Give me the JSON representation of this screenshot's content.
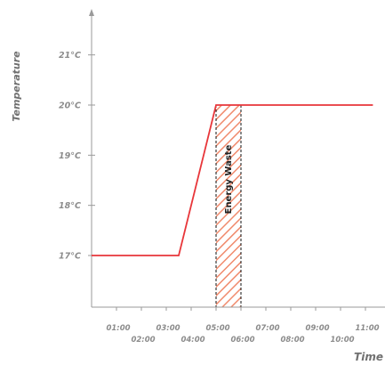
{
  "chart_data": {
    "type": "line",
    "xlabel": "Time",
    "ylabel": "Temperature",
    "y_ticks": [
      {
        "value": 17,
        "label": "17°C"
      },
      {
        "value": 18,
        "label": "18°C"
      },
      {
        "value": 19,
        "label": "19°C"
      },
      {
        "value": 20,
        "label": "20°C"
      },
      {
        "value": 21,
        "label": "21°C"
      }
    ],
    "x_ticks": [
      {
        "value": 1,
        "label": "01:00"
      },
      {
        "value": 2,
        "label": "02:00"
      },
      {
        "value": 3,
        "label": "03:00"
      },
      {
        "value": 4,
        "label": "04:00"
      },
      {
        "value": 5,
        "label": "05:00"
      },
      {
        "value": 6,
        "label": "06:00"
      },
      {
        "value": 7,
        "label": "07:00"
      },
      {
        "value": 8,
        "label": "08:00"
      },
      {
        "value": 9,
        "label": "09:00"
      },
      {
        "value": 10,
        "label": "10:00"
      },
      {
        "value": 11,
        "label": "11:00"
      }
    ],
    "xlim": [
      0,
      11.3
    ],
    "ylim": [
      16,
      21.8
    ],
    "series": [
      {
        "color": "#e8363a",
        "points": [
          [
            0,
            17
          ],
          [
            3.5,
            17
          ],
          [
            5,
            20
          ],
          [
            11.3,
            20
          ]
        ]
      }
    ],
    "annotation": {
      "label": "Energy Waste",
      "x_start": 5,
      "x_end": 6,
      "fill_color": "#f08a6c"
    },
    "grid": false,
    "legend": "none"
  }
}
